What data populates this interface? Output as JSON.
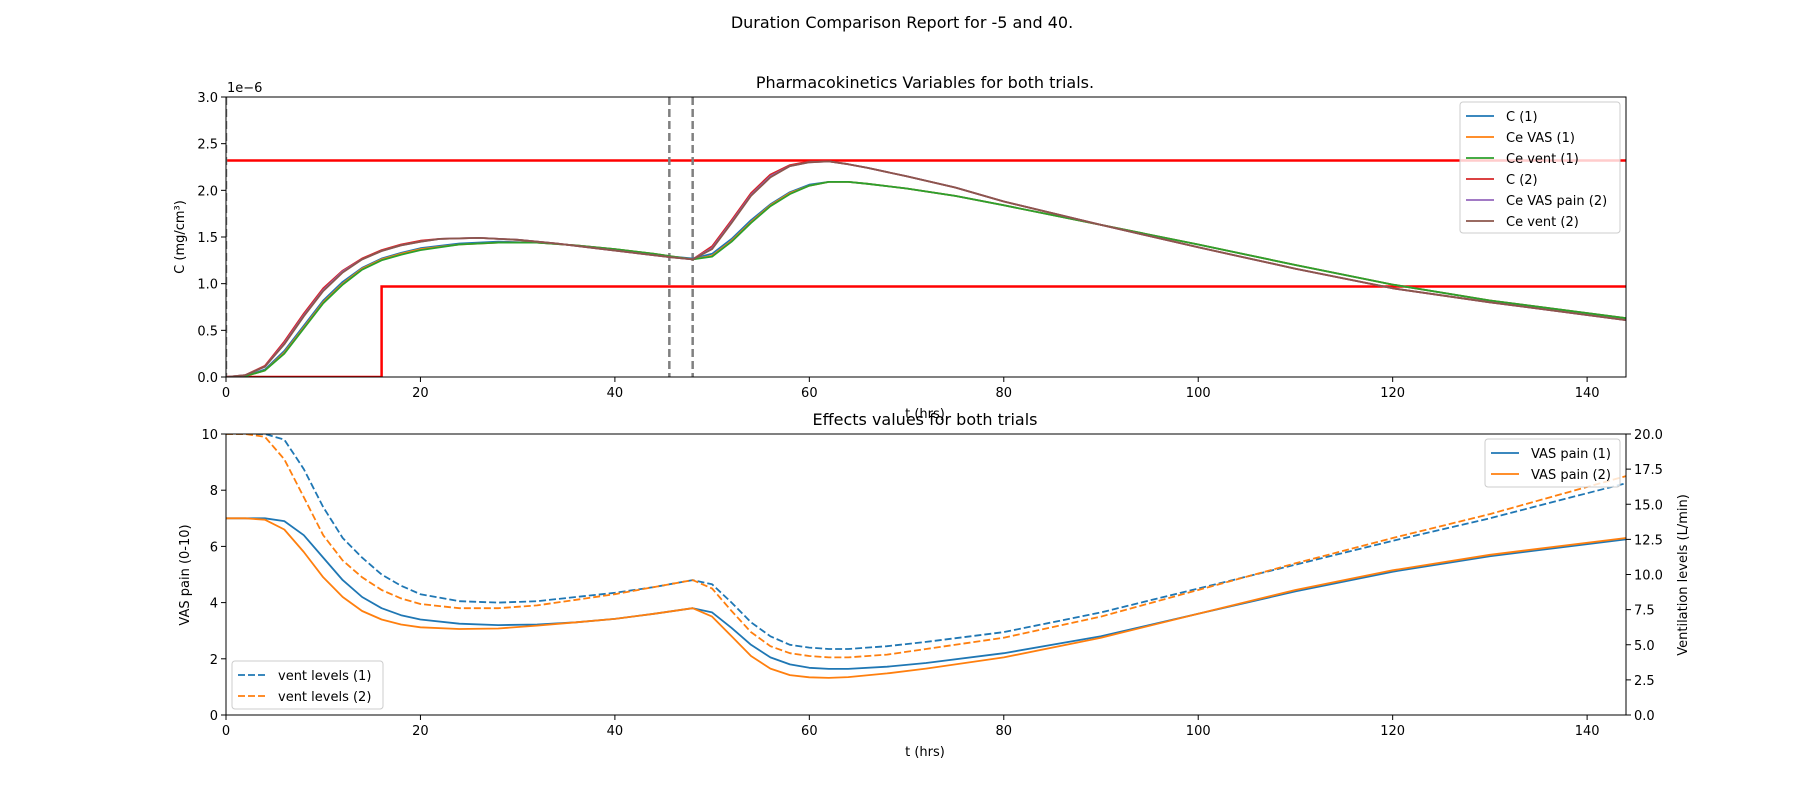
{
  "suptitle": "Duration Comparison Report for -5 and 40.",
  "colors": {
    "blue": "#1f77b4",
    "orange": "#ff7f0e",
    "green": "#2ca02c",
    "red": "#d62728",
    "purple": "#9467bd",
    "brown": "#8c564b",
    "threshold": "#ff0000",
    "marker": "#808080"
  },
  "chart_data": [
    {
      "type": "line",
      "title": "Pharmacokinetics Variables for both trials.",
      "xlabel": "t (hrs)",
      "ylabel": "C (mg/cm³)",
      "offset_text": "1e−6",
      "xlim": [
        0,
        144
      ],
      "ylim": [
        0,
        3.0
      ],
      "xticks": [
        0,
        20,
        40,
        60,
        80,
        100,
        120,
        140
      ],
      "yticks": [
        0.0,
        0.5,
        1.0,
        1.5,
        2.0,
        2.5,
        3.0
      ],
      "ytick_labels": [
        "0.0",
        "0.5",
        "1.0",
        "1.5",
        "2.0",
        "2.5",
        "3.0"
      ],
      "legend_position": "top-right",
      "series": [
        {
          "name": "C (1)",
          "color": "blue",
          "dash": "solid",
          "x": [
            0,
            2,
            4,
            6,
            8,
            10,
            12,
            14,
            16,
            18,
            20,
            24,
            28,
            32,
            36,
            40,
            44,
            46,
            48,
            50,
            52,
            54,
            56,
            58,
            60,
            62,
            64,
            66,
            70,
            75,
            80,
            90,
            100,
            110,
            120,
            130,
            144
          ],
          "y": [
            0,
            0.01,
            0.08,
            0.28,
            0.55,
            0.82,
            1.02,
            1.17,
            1.27,
            1.33,
            1.38,
            1.43,
            1.45,
            1.44,
            1.41,
            1.37,
            1.32,
            1.29,
            1.27,
            1.32,
            1.48,
            1.68,
            1.85,
            1.98,
            2.06,
            2.09,
            2.09,
            2.07,
            2.02,
            1.94,
            1.84,
            1.63,
            1.42,
            1.2,
            0.99,
            0.82,
            0.63
          ]
        },
        {
          "name": "Ce VAS (1)",
          "color": "orange",
          "dash": "solid",
          "x": [
            0,
            2,
            4,
            6,
            8,
            10,
            12,
            14,
            16,
            18,
            20,
            24,
            28,
            32,
            36,
            40,
            44,
            46,
            48,
            50,
            52,
            54,
            56,
            58,
            60,
            62,
            64,
            66,
            70,
            75,
            80,
            90,
            100,
            110,
            120,
            130,
            144
          ],
          "y": [
            0,
            0.01,
            0.07,
            0.26,
            0.53,
            0.8,
            1.0,
            1.16,
            1.26,
            1.32,
            1.37,
            1.42,
            1.44,
            1.44,
            1.41,
            1.37,
            1.32,
            1.29,
            1.26,
            1.3,
            1.46,
            1.66,
            1.84,
            1.97,
            2.05,
            2.09,
            2.09,
            2.07,
            2.02,
            1.94,
            1.84,
            1.63,
            1.42,
            1.2,
            0.99,
            0.82,
            0.63
          ]
        },
        {
          "name": "Ce vent (1)",
          "color": "green",
          "dash": "solid",
          "x": [
            0,
            2,
            4,
            6,
            8,
            10,
            12,
            14,
            16,
            18,
            20,
            24,
            28,
            32,
            36,
            40,
            44,
            46,
            48,
            50,
            52,
            54,
            56,
            58,
            60,
            62,
            64,
            66,
            70,
            75,
            80,
            90,
            100,
            110,
            120,
            130,
            144
          ],
          "y": [
            0,
            0.01,
            0.07,
            0.25,
            0.52,
            0.79,
            0.99,
            1.15,
            1.25,
            1.31,
            1.36,
            1.42,
            1.44,
            1.44,
            1.41,
            1.37,
            1.32,
            1.29,
            1.26,
            1.29,
            1.45,
            1.65,
            1.83,
            1.96,
            2.05,
            2.09,
            2.09,
            2.07,
            2.02,
            1.94,
            1.84,
            1.63,
            1.42,
            1.2,
            0.99,
            0.82,
            0.63
          ]
        },
        {
          "name": "C (2)",
          "color": "red",
          "dash": "solid",
          "x": [
            0,
            2,
            4,
            6,
            8,
            10,
            12,
            14,
            16,
            18,
            20,
            22,
            26,
            30,
            34,
            38,
            42,
            46,
            48,
            50,
            52,
            54,
            56,
            58,
            60,
            62,
            64,
            66,
            70,
            75,
            80,
            90,
            100,
            110,
            120,
            130,
            144
          ],
          "y": [
            0,
            0.02,
            0.12,
            0.38,
            0.68,
            0.95,
            1.14,
            1.27,
            1.36,
            1.42,
            1.46,
            1.48,
            1.49,
            1.47,
            1.43,
            1.38,
            1.33,
            1.28,
            1.26,
            1.4,
            1.68,
            1.97,
            2.17,
            2.27,
            2.31,
            2.31,
            2.28,
            2.24,
            2.15,
            2.03,
            1.88,
            1.63,
            1.39,
            1.16,
            0.95,
            0.8,
            0.61
          ]
        },
        {
          "name": "Ce VAS pain (2)",
          "color": "purple",
          "dash": "solid",
          "x": [
            0,
            2,
            4,
            6,
            8,
            10,
            12,
            14,
            16,
            18,
            20,
            22,
            26,
            30,
            34,
            38,
            42,
            46,
            48,
            50,
            52,
            54,
            56,
            58,
            60,
            62,
            64,
            66,
            70,
            75,
            80,
            90,
            100,
            110,
            120,
            130,
            144
          ],
          "y": [
            0,
            0.02,
            0.11,
            0.36,
            0.66,
            0.93,
            1.13,
            1.26,
            1.35,
            1.41,
            1.45,
            1.48,
            1.49,
            1.47,
            1.43,
            1.38,
            1.33,
            1.28,
            1.26,
            1.38,
            1.66,
            1.95,
            2.15,
            2.26,
            2.3,
            2.31,
            2.28,
            2.24,
            2.15,
            2.03,
            1.88,
            1.63,
            1.39,
            1.16,
            0.95,
            0.8,
            0.61
          ]
        },
        {
          "name": "Ce vent (2)",
          "color": "brown",
          "dash": "solid",
          "x": [
            0,
            2,
            4,
            6,
            8,
            10,
            12,
            14,
            16,
            18,
            20,
            22,
            26,
            30,
            34,
            38,
            42,
            46,
            48,
            50,
            52,
            54,
            56,
            58,
            60,
            62,
            64,
            66,
            70,
            75,
            80,
            90,
            100,
            110,
            120,
            130,
            144
          ],
          "y": [
            0,
            0.02,
            0.11,
            0.35,
            0.65,
            0.92,
            1.12,
            1.26,
            1.35,
            1.41,
            1.45,
            1.48,
            1.49,
            1.47,
            1.43,
            1.38,
            1.33,
            1.28,
            1.26,
            1.37,
            1.65,
            1.94,
            2.14,
            2.26,
            2.3,
            2.31,
            2.28,
            2.24,
            2.15,
            2.03,
            1.88,
            1.63,
            1.39,
            1.16,
            0.95,
            0.8,
            0.61
          ]
        }
      ],
      "thresholds": [
        {
          "color": "threshold",
          "x": [
            0,
            144
          ],
          "y": [
            2.32,
            2.32
          ]
        },
        {
          "color": "threshold",
          "x": [
            0,
            16,
            16,
            144
          ],
          "y": [
            0,
            0,
            0.97,
            0.97
          ]
        }
      ],
      "vlines": [
        {
          "x": 0,
          "color": "marker"
        },
        {
          "x": 45.6,
          "color": "marker"
        },
        {
          "x": 48,
          "color": "marker"
        }
      ]
    },
    {
      "type": "line",
      "title": "Effects values for both trials",
      "xlabel": "t (hrs)",
      "ylabel": "VAS pain (0-10)",
      "ylabel_right": "Ventilation levels (L/min)",
      "xlim": [
        0,
        144
      ],
      "ylim": [
        0,
        10
      ],
      "ylim_right": [
        0,
        20
      ],
      "xticks": [
        0,
        20,
        40,
        60,
        80,
        100,
        120,
        140
      ],
      "yticks": [
        0,
        2,
        4,
        6,
        8,
        10
      ],
      "ytick_labels": [
        "0",
        "2",
        "4",
        "6",
        "8",
        "10"
      ],
      "yticks_right": [
        0.0,
        2.5,
        5.0,
        7.5,
        10.0,
        12.5,
        15.0,
        17.5,
        20.0
      ],
      "ytick_labels_right": [
        "0.0",
        "2.5",
        "5.0",
        "7.5",
        "10.0",
        "12.5",
        "15.0",
        "17.5",
        "20.0"
      ],
      "legend_position": "top-right",
      "legend_right_position": "bottom-left",
      "series": [
        {
          "name": "VAS pain (1)",
          "color": "blue",
          "dash": "solid",
          "axis": "left",
          "x": [
            0,
            2,
            4,
            6,
            8,
            10,
            12,
            14,
            16,
            18,
            20,
            24,
            28,
            32,
            36,
            40,
            44,
            48,
            50,
            52,
            54,
            56,
            58,
            60,
            62,
            64,
            68,
            72,
            80,
            90,
            100,
            110,
            120,
            130,
            144
          ],
          "y": [
            7.0,
            7.0,
            7.0,
            6.9,
            6.4,
            5.6,
            4.8,
            4.2,
            3.8,
            3.55,
            3.4,
            3.25,
            3.2,
            3.22,
            3.3,
            3.42,
            3.6,
            3.8,
            3.65,
            3.1,
            2.5,
            2.05,
            1.8,
            1.68,
            1.64,
            1.64,
            1.72,
            1.85,
            2.2,
            2.8,
            3.6,
            4.4,
            5.1,
            5.65,
            6.25
          ]
        },
        {
          "name": "VAS pain (2)",
          "color": "orange",
          "dash": "solid",
          "axis": "left",
          "x": [
            0,
            2,
            4,
            6,
            8,
            10,
            12,
            14,
            16,
            18,
            20,
            24,
            28,
            32,
            36,
            40,
            44,
            48,
            50,
            52,
            54,
            56,
            58,
            60,
            62,
            64,
            68,
            72,
            80,
            90,
            100,
            110,
            120,
            130,
            144
          ],
          "y": [
            7.0,
            7.0,
            6.95,
            6.6,
            5.8,
            4.9,
            4.2,
            3.7,
            3.4,
            3.22,
            3.12,
            3.06,
            3.08,
            3.18,
            3.3,
            3.42,
            3.6,
            3.8,
            3.5,
            2.8,
            2.1,
            1.65,
            1.42,
            1.34,
            1.32,
            1.35,
            1.48,
            1.65,
            2.05,
            2.75,
            3.6,
            4.45,
            5.15,
            5.7,
            6.3
          ]
        },
        {
          "name": "vent levels (1)",
          "color": "blue",
          "dash": "dashed",
          "axis": "right",
          "x": [
            0,
            2,
            4,
            6,
            8,
            10,
            12,
            14,
            16,
            18,
            20,
            24,
            28,
            32,
            36,
            40,
            44,
            48,
            50,
            52,
            54,
            56,
            58,
            60,
            62,
            64,
            68,
            72,
            80,
            90,
            100,
            110,
            120,
            130,
            144
          ],
          "y": [
            20.0,
            20.0,
            20.0,
            19.6,
            17.5,
            14.8,
            12.6,
            11.2,
            10.0,
            9.2,
            8.6,
            8.1,
            8.0,
            8.1,
            8.4,
            8.7,
            9.1,
            9.6,
            9.3,
            8.0,
            6.6,
            5.6,
            5.0,
            4.8,
            4.7,
            4.7,
            4.9,
            5.2,
            5.9,
            7.3,
            9.0,
            10.7,
            12.4,
            14.0,
            16.5
          ]
        },
        {
          "name": "vent levels (2)",
          "color": "orange",
          "dash": "dashed",
          "axis": "right",
          "x": [
            0,
            2,
            4,
            6,
            8,
            10,
            12,
            14,
            16,
            18,
            20,
            24,
            28,
            32,
            36,
            40,
            44,
            48,
            50,
            52,
            54,
            56,
            58,
            60,
            62,
            64,
            68,
            72,
            80,
            90,
            100,
            110,
            120,
            130,
            144
          ],
          "y": [
            20.0,
            20.0,
            19.8,
            18.2,
            15.5,
            12.8,
            11.0,
            9.8,
            8.9,
            8.3,
            7.9,
            7.6,
            7.6,
            7.8,
            8.2,
            8.6,
            9.1,
            9.6,
            9.0,
            7.4,
            5.9,
            4.9,
            4.4,
            4.2,
            4.1,
            4.1,
            4.3,
            4.7,
            5.5,
            7.0,
            8.9,
            10.8,
            12.6,
            14.3,
            17.0
          ]
        }
      ]
    }
  ]
}
